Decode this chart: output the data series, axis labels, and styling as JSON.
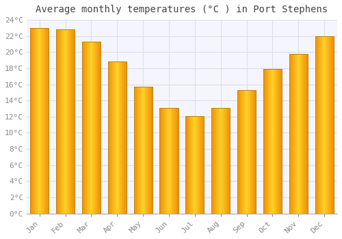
{
  "title": "Average monthly temperatures (°C ) in Port Stephens",
  "months": [
    "Jan",
    "Feb",
    "Mar",
    "Apr",
    "May",
    "Jun",
    "Jul",
    "Aug",
    "Sep",
    "Oct",
    "Nov",
    "Dec"
  ],
  "values": [
    23.0,
    22.8,
    21.3,
    18.8,
    15.7,
    13.1,
    12.1,
    13.1,
    15.3,
    17.9,
    19.8,
    22.0
  ],
  "bar_color_center": "#FFD040",
  "bar_color_edge": "#F0920A",
  "bar_border_color": "#B8860B",
  "ylim": [
    0,
    24
  ],
  "ytick_step": 2,
  "background_color": "#FFFFFF",
  "plot_bg_color": "#F5F5FF",
  "grid_color": "#DDDDEE",
  "title_fontsize": 10,
  "tick_fontsize": 8,
  "title_color": "#444444",
  "tick_color": "#888888"
}
